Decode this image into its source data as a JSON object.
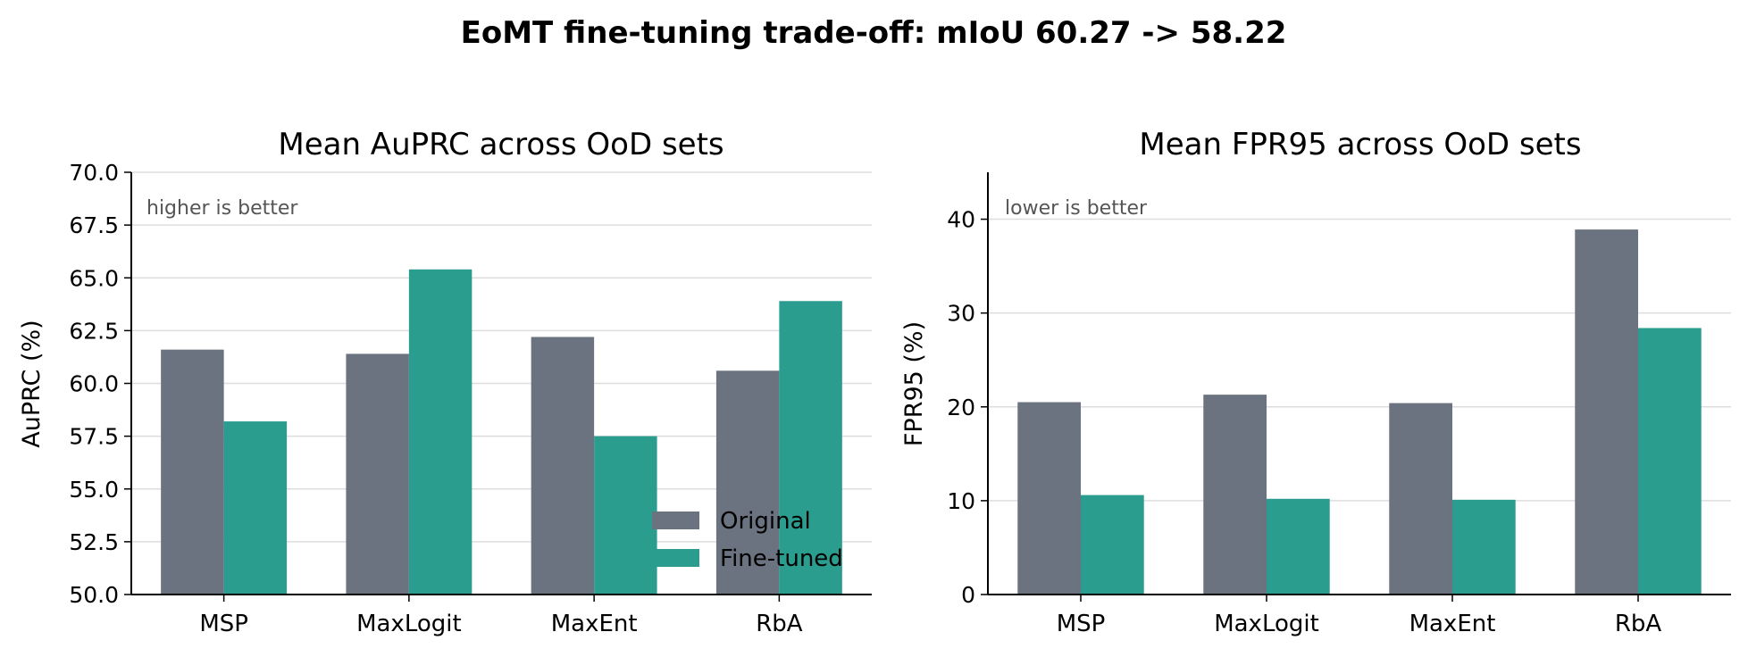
{
  "figure": {
    "suptitle": "EoMT fine-tuning trade-off: mIoU 60.27 -> 58.22"
  },
  "colors": {
    "original": "#6b7280",
    "finetuned": "#2a9d8f",
    "grid": "#dddddd",
    "note": "#555555"
  },
  "chart_data": [
    {
      "type": "bar",
      "title": "Mean AuPRC across OoD sets",
      "xlabel": "",
      "ylabel": "AuPRC (%)",
      "note": "higher is better",
      "categories": [
        "MSP",
        "MaxLogit",
        "MaxEnt",
        "RbA"
      ],
      "series": [
        {
          "name": "Original",
          "values": [
            61.6,
            61.4,
            62.2,
            60.6
          ]
        },
        {
          "name": "Fine-tuned",
          "values": [
            58.2,
            65.4,
            57.5,
            63.9
          ]
        }
      ],
      "ylim": [
        50,
        70
      ],
      "yticks": [
        "50.0",
        "52.5",
        "55.0",
        "57.5",
        "60.0",
        "62.5",
        "65.0",
        "67.5",
        "70.0"
      ],
      "grid": true,
      "legend": "lower right"
    },
    {
      "type": "bar",
      "title": "Mean FPR95 across OoD sets",
      "xlabel": "",
      "ylabel": "FPR95 (%)",
      "note": "lower is better",
      "categories": [
        "MSP",
        "MaxLogit",
        "MaxEnt",
        "RbA"
      ],
      "series": [
        {
          "name": "Original",
          "values": [
            20.5,
            21.3,
            20.4,
            38.9
          ]
        },
        {
          "name": "Fine-tuned",
          "values": [
            10.6,
            10.2,
            10.1,
            28.4
          ]
        }
      ],
      "ylim": [
        0,
        45
      ],
      "yticks": [
        "0",
        "10",
        "20",
        "30",
        "40"
      ],
      "grid": true,
      "legend": "none"
    }
  ]
}
